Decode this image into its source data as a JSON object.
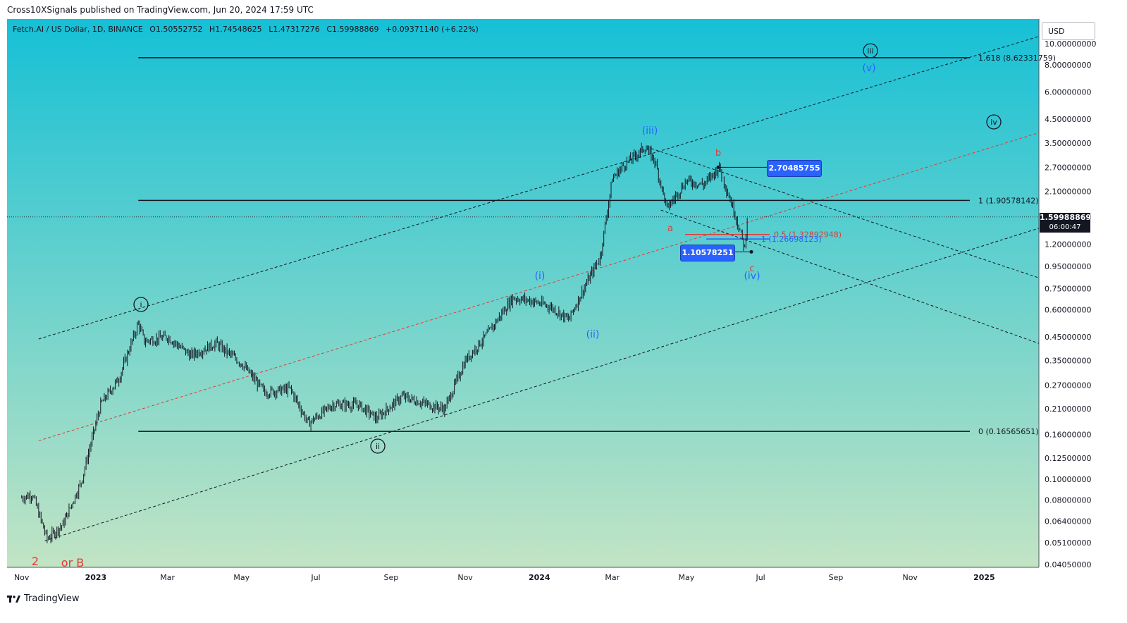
{
  "header": {
    "published": "Cross10XSignals published on TradingView.com, Jun 20, 2024 17:59 UTC"
  },
  "legend": {
    "symbol": "Fetch.AI / US Dollar, 1D, BINANCE",
    "open": "O1.50552752",
    "high": "H1.74548625",
    "low": "L1.47317276",
    "close": "C1.59988869",
    "change": "+0.09371140 (+6.22%)"
  },
  "currency": "USD",
  "last_price": {
    "value": "1.59988869",
    "countdown": "06:00:47"
  },
  "footer": {
    "brand": "TradingView"
  },
  "colors": {
    "bg_top": "#16c0d6",
    "bg_bottom": "#c2e4c4",
    "wave_blue": "#2962ff",
    "wave_red": "#e53935",
    "callout_blue": "#2962ff"
  },
  "chart_data": {
    "type": "line",
    "scale": "log",
    "series_name": "FET/USD daily close (approx.)",
    "x": [
      "2022-11-01",
      "2022-11-10",
      "2022-11-22",
      "2022-12-05",
      "2022-12-20",
      "2023-01-05",
      "2023-01-20",
      "2023-02-05",
      "2023-02-10",
      "2023-03-01",
      "2023-03-20",
      "2023-04-10",
      "2023-05-01",
      "2023-05-20",
      "2023-06-10",
      "2023-06-25",
      "2023-07-15",
      "2023-08-05",
      "2023-08-20",
      "2023-09-10",
      "2023-10-01",
      "2023-10-15",
      "2023-11-01",
      "2023-11-20",
      "2023-12-10",
      "2023-12-25",
      "2024-01-10",
      "2024-01-25",
      "2024-02-05",
      "2024-02-20",
      "2024-03-01",
      "2024-03-10",
      "2024-03-28",
      "2024-04-05",
      "2024-04-15",
      "2024-05-01",
      "2024-05-15",
      "2024-05-28",
      "2024-06-10",
      "2024-06-18",
      "2024-06-20"
    ],
    "values": [
      0.082,
      0.085,
      0.053,
      0.062,
      0.097,
      0.22,
      0.29,
      0.52,
      0.43,
      0.45,
      0.37,
      0.42,
      0.34,
      0.25,
      0.26,
      0.18,
      0.22,
      0.22,
      0.19,
      0.24,
      0.22,
      0.21,
      0.35,
      0.47,
      0.68,
      0.66,
      0.62,
      0.54,
      0.72,
      1.05,
      2.4,
      2.75,
      3.35,
      2.9,
      1.75,
      2.35,
      2.25,
      2.7,
      1.65,
      1.15,
      1.6
    ],
    "y_ticks": [
      "10.00000000",
      "8.00000000",
      "6.00000000",
      "4.50000000",
      "3.50000000",
      "2.70000000",
      "2.10000000",
      "1.60000000",
      "1.20000000",
      "0.95000000",
      "0.75000000",
      "0.60000000",
      "0.45000000",
      "0.35000000",
      "0.27000000",
      "0.21000000",
      "0.16000000",
      "0.12500000",
      "0.10000000",
      "0.08000000",
      "0.06400000",
      "0.05100000",
      "0.04050000"
    ],
    "x_ticks": [
      "Nov",
      "2023",
      "Mar",
      "May",
      "Jul",
      "Sep",
      "Nov",
      "2024",
      "Mar",
      "May",
      "Jul",
      "Sep",
      "Nov",
      "2025"
    ],
    "fib_levels": [
      {
        "label": "1.618 (8.62331759)",
        "value": 8.62331759
      },
      {
        "label": "1 (1.90578142)",
        "value": 1.90578142
      },
      {
        "label": "0 (0.16565651)",
        "value": 0.16565651
      }
    ],
    "fib_extension": [
      {
        "label": "0.5 (1.32892948)",
        "value": 1.32892948,
        "color": "#e53935"
      },
      {
        "label": "1 (1.26698123)",
        "value": 1.26698123,
        "color": "#2962ff"
      }
    ],
    "price_callouts": [
      "2.70485755",
      "1.10578251"
    ],
    "wave_labels": {
      "circled": [
        "i",
        "ii",
        "iii",
        "iv"
      ],
      "blue": [
        "(i)",
        "(ii)",
        "(iii)",
        "(iv)",
        "(v)"
      ],
      "red": [
        "a",
        "b",
        "c",
        "2",
        "or B"
      ]
    }
  }
}
